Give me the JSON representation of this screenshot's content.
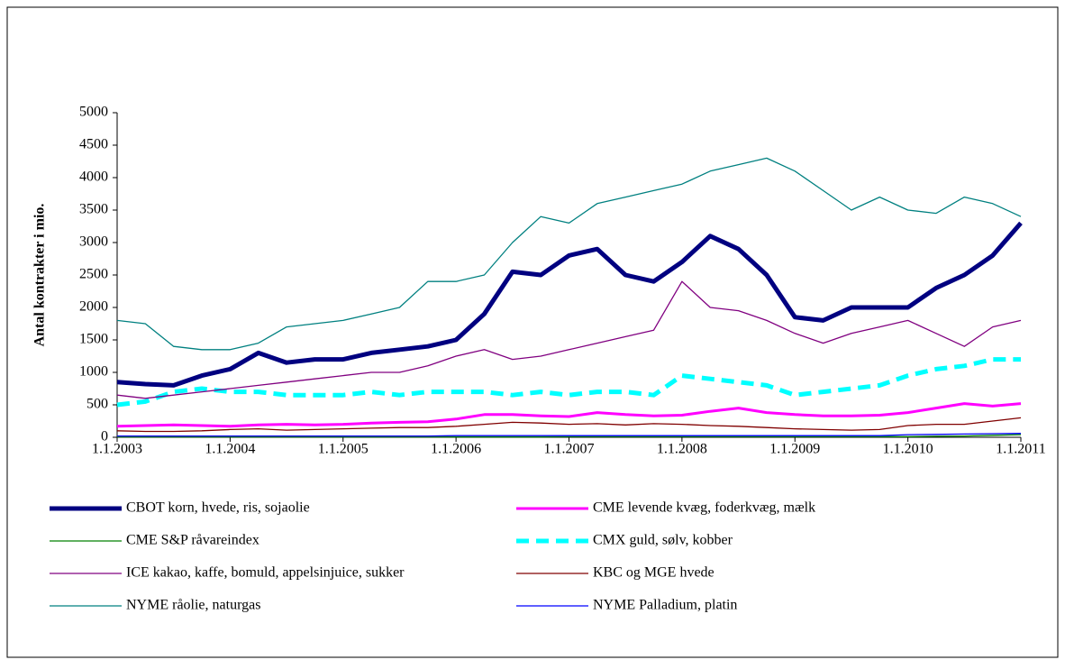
{
  "chart_data": {
    "type": "line",
    "ylabel": "Antal kontrakter i mio.",
    "x": [
      2003,
      2003.25,
      2003.5,
      2003.75,
      2004,
      2004.25,
      2004.5,
      2004.75,
      2005,
      2005.25,
      2005.5,
      2005.75,
      2006,
      2006.25,
      2006.5,
      2006.75,
      2007,
      2007.25,
      2007.5,
      2007.75,
      2008,
      2008.25,
      2008.5,
      2008.75,
      2009,
      2009.25,
      2009.5,
      2009.75,
      2010,
      2010.25,
      2010.5,
      2010.75,
      2011
    ],
    "xlim": [
      2003,
      2011
    ],
    "xticks": [
      {
        "value": 2003,
        "label": "1.1.2003"
      },
      {
        "value": 2004,
        "label": "1.1.2004"
      },
      {
        "value": 2005,
        "label": "1.1.2005"
      },
      {
        "value": 2006,
        "label": "1.1.2006"
      },
      {
        "value": 2007,
        "label": "1.1.2007"
      },
      {
        "value": 2008,
        "label": "1.1.2008"
      },
      {
        "value": 2009,
        "label": "1.1.2009"
      },
      {
        "value": 2010,
        "label": "1.1.2010"
      },
      {
        "value": 2011,
        "label": "1.1.2011"
      }
    ],
    "ylim": [
      0,
      5000
    ],
    "yticks": [
      0,
      500,
      1000,
      1500,
      2000,
      2500,
      3000,
      3500,
      4000,
      4500,
      5000
    ],
    "series": [
      {
        "name": "CBOT korn, hvede, ris, sojaolie",
        "color": "#000080",
        "width": 5,
        "dashed": false,
        "values": [
          850,
          820,
          800,
          950,
          1050,
          1300,
          1150,
          1200,
          1200,
          1300,
          1350,
          1400,
          1500,
          1900,
          2550,
          2500,
          2800,
          2900,
          2500,
          2400,
          2700,
          3100,
          2900,
          2500,
          1850,
          1800,
          2000,
          2000,
          2000,
          2300,
          2500,
          2800,
          3300
        ]
      },
      {
        "name": "CME levende kvæg, foderkvæg, mælk",
        "color": "#ff00ff",
        "width": 3,
        "dashed": false,
        "values": [
          170,
          180,
          190,
          180,
          170,
          190,
          200,
          190,
          200,
          220,
          230,
          240,
          280,
          350,
          350,
          330,
          320,
          380,
          350,
          330,
          340,
          400,
          450,
          380,
          350,
          330,
          330,
          340,
          380,
          450,
          520,
          480,
          520
        ]
      },
      {
        "name": "CME S&P råvareindex",
        "color": "#008000",
        "width": 1.3,
        "dashed": false,
        "values": [
          5,
          5,
          5,
          5,
          5,
          5,
          5,
          5,
          5,
          5,
          5,
          5,
          5,
          5,
          5,
          5,
          10,
          10,
          10,
          10,
          10,
          10,
          10,
          10,
          10,
          10,
          10,
          10,
          10,
          15,
          20,
          30,
          40
        ]
      },
      {
        "name": "CMX guld, sølv, kobber",
        "color": "#00ffff",
        "width": 5,
        "dashed": true,
        "values": [
          500,
          550,
          700,
          750,
          700,
          700,
          650,
          650,
          650,
          700,
          650,
          700,
          700,
          700,
          650,
          700,
          650,
          700,
          700,
          650,
          950,
          900,
          850,
          800,
          650,
          700,
          750,
          800,
          950,
          1050,
          1100,
          1200,
          1200
        ]
      },
      {
        "name": "ICE kakao, kaffe, bomuld, appelsinjuice, sukker",
        "color": "#800080",
        "width": 1.3,
        "dashed": false,
        "values": [
          650,
          600,
          650,
          700,
          750,
          800,
          850,
          900,
          950,
          1000,
          1000,
          1100,
          1250,
          1350,
          1200,
          1250,
          1350,
          1450,
          1550,
          1650,
          2400,
          2000,
          1950,
          1800,
          1600,
          1450,
          1600,
          1700,
          1800,
          1600,
          1400,
          1700,
          1800
        ]
      },
      {
        "name": "KBC og  MGE hvede",
        "color": "#800000",
        "width": 1.3,
        "dashed": false,
        "values": [
          100,
          90,
          90,
          100,
          120,
          130,
          110,
          120,
          130,
          140,
          150,
          150,
          170,
          200,
          230,
          220,
          200,
          210,
          190,
          210,
          200,
          180,
          170,
          150,
          130,
          120,
          110,
          120,
          180,
          200,
          200,
          250,
          300
        ]
      },
      {
        "name": "NYME råolie, naturgas",
        "color": "#008080",
        "width": 1.3,
        "dashed": false,
        "values": [
          1800,
          1750,
          1400,
          1350,
          1350,
          1450,
          1700,
          1750,
          1800,
          1900,
          2000,
          2400,
          2400,
          2500,
          3000,
          3400,
          3300,
          3600,
          3700,
          3800,
          3900,
          4100,
          4200,
          4300,
          4100,
          3800,
          3500,
          3700,
          3500,
          3450,
          3700,
          3600,
          3400
        ]
      },
      {
        "name": "NYME Palladium, platin",
        "color": "#0000ff",
        "width": 1.3,
        "dashed": false,
        "values": [
          20,
          20,
          20,
          20,
          20,
          20,
          20,
          20,
          20,
          20,
          20,
          20,
          25,
          25,
          25,
          25,
          25,
          25,
          25,
          25,
          25,
          25,
          25,
          25,
          25,
          25,
          25,
          25,
          40,
          45,
          50,
          55,
          60
        ]
      }
    ]
  }
}
